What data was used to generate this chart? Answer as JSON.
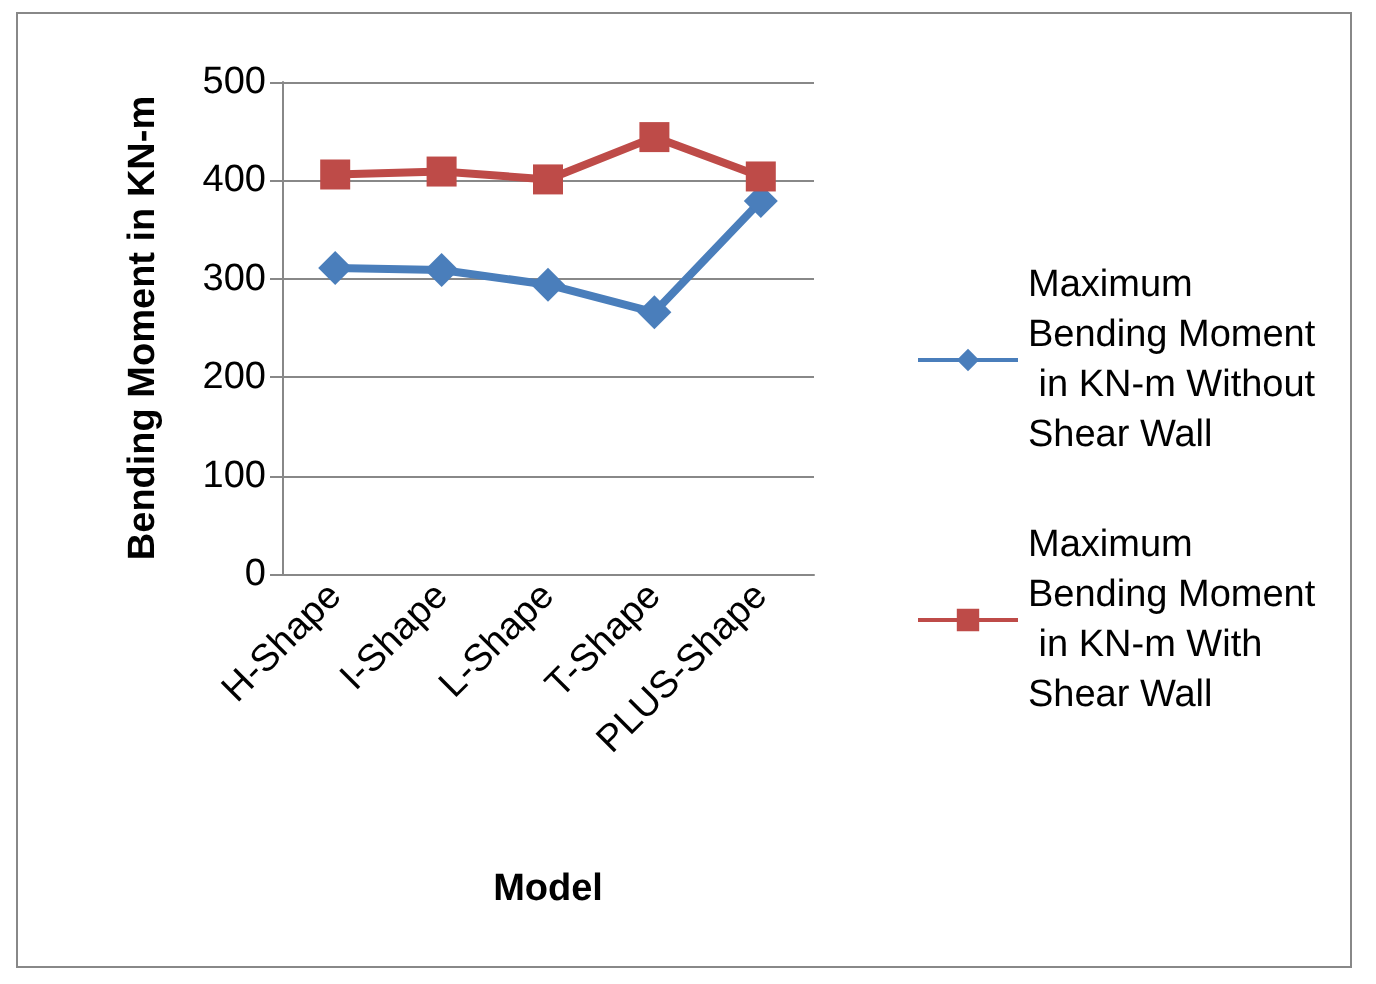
{
  "chart_data": {
    "type": "line",
    "xlabel": "Model",
    "ylabel": "Bending Moment in KN-m",
    "categories": [
      "H-Shape",
      "I-Shape",
      "L-Shape",
      "T-Shape",
      "PLUS-Shape"
    ],
    "series": [
      {
        "name": "Maximum Bending Moment  in KN-m Without Shear Wall",
        "color": "#4a7ebb",
        "marker": "diamond",
        "values": [
          311,
          309,
          294,
          266,
          379
        ]
      },
      {
        "name": "Maximum Bending Moment  in KN-m With Shear Wall",
        "color": "#be4b48",
        "marker": "square",
        "values": [
          406,
          409,
          401,
          444,
          404
        ]
      }
    ],
    "ylim": [
      0,
      500
    ],
    "yticks": [
      0,
      100,
      200,
      300,
      400,
      500
    ],
    "grid": "y",
    "legend": "right",
    "line_style": "solid"
  }
}
